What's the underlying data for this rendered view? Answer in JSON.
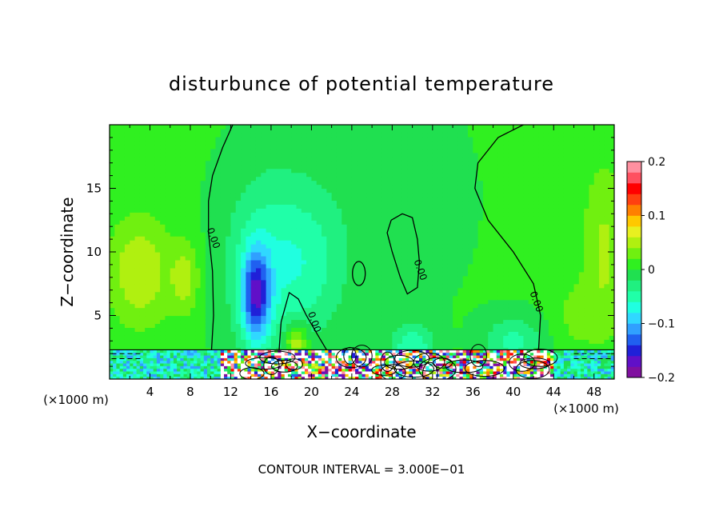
{
  "chart_data": {
    "type": "heatmap",
    "title": "disturbunce of potential temperature",
    "xlabel": "X−coordinate",
    "ylabel": "Z−coordinate",
    "x_unit": "(×1000 m)",
    "xlim": [
      0,
      50
    ],
    "ylim": [
      0,
      20
    ],
    "x_ticks": [
      4,
      8,
      12,
      16,
      20,
      24,
      28,
      32,
      36,
      40,
      44,
      48
    ],
    "y_ticks": [
      5,
      10,
      15
    ],
    "contour_interval_text": "CONTOUR INTERVAL = 3.000E−01",
    "contour_labels": [
      {
        "text": "0.00",
        "x": 10.0,
        "z": 11.0
      },
      {
        "text": "0.00",
        "x": 20.0,
        "z": 4.4
      },
      {
        "text": "0.00",
        "x": 30.5,
        "z": 8.5
      },
      {
        "text": "0.00",
        "x": 42.0,
        "z": 6.0
      }
    ],
    "colorbar": {
      "min": -0.2,
      "max": 0.2,
      "tick_labels": [
        "0.2",
        "0.1",
        "0",
        "−0.1",
        "−0.2"
      ],
      "tick_values": [
        0.2,
        0.1,
        0,
        -0.1,
        -0.2
      ],
      "colors": [
        "#8010a0",
        "#6010c8",
        "#2020d8",
        "#2060f0",
        "#30a0ff",
        "#30d8ff",
        "#20ffe0",
        "#20ffa8",
        "#20f080",
        "#20e050",
        "#30f020",
        "#70f010",
        "#b0f010",
        "#e8f020",
        "#ffc800",
        "#ff8000",
        "#ff4010",
        "#ff0000",
        "#ff5060",
        "#ff90a0"
      ]
    },
    "anomalies": [
      {
        "x": 14.5,
        "z": 6.5,
        "sx": 1.0,
        "sz": 2.6,
        "amp": -0.13
      },
      {
        "x": 15.5,
        "z": 9.0,
        "sx": 3.0,
        "sz": 5.0,
        "amp": -0.05
      },
      {
        "x": 20.0,
        "z": 9.0,
        "sx": 2.5,
        "sz": 4.0,
        "amp": -0.035
      },
      {
        "x": 30.0,
        "z": 2.5,
        "sx": 1.5,
        "sz": 1.3,
        "amp": -0.06
      },
      {
        "x": 40.0,
        "z": 3.0,
        "sx": 2.0,
        "sz": 1.4,
        "amp": -0.05
      },
      {
        "x": 25.0,
        "z": 14.0,
        "sx": 8.0,
        "sz": 8.0,
        "amp": -0.012
      },
      {
        "x": 3.0,
        "z": 8.5,
        "sx": 2.2,
        "sz": 3.0,
        "amp": 0.055
      },
      {
        "x": 7.5,
        "z": 8.0,
        "sx": 1.0,
        "sz": 2.0,
        "amp": 0.045
      },
      {
        "x": 49.0,
        "z": 10.0,
        "sx": 1.5,
        "sz": 5.0,
        "amp": 0.04
      },
      {
        "x": 18.5,
        "z": 3.0,
        "sx": 0.8,
        "sz": 1.0,
        "amp": 0.07
      },
      {
        "x": 46.0,
        "z": 5.0,
        "sx": 1.5,
        "sz": 2.0,
        "amp": 0.02
      }
    ]
  }
}
